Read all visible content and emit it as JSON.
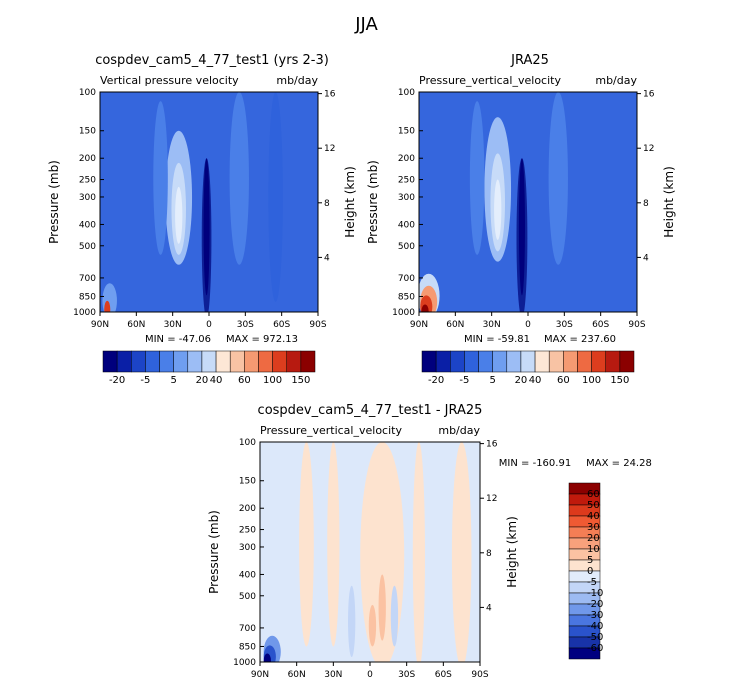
{
  "page_title": "JJA",
  "chart_data": [
    {
      "type": "heatmap",
      "title": "cospdev_cam5_4_77_test1 (yrs 2-3)",
      "subtitle_left": "Vertical pressure velocity",
      "subtitle_right": "mb/day",
      "ylabel": "Pressure (mb)",
      "ylabel_right": "Height (km)",
      "x_ticks": [
        "90N",
        "60N",
        "30N",
        "0",
        "30S",
        "60S",
        "90S"
      ],
      "y_ticks": [
        "100",
        "150",
        "200",
        "250",
        "300",
        "400",
        "500",
        "700",
        "850",
        "1000"
      ],
      "y_ticks_right": [
        "16",
        "12",
        "8",
        "4"
      ],
      "min_text": "MIN = -47.06",
      "max_text": "MAX = 972.13",
      "colorbar_labels": [
        "-20",
        "-5",
        "5",
        "20",
        "40",
        "60",
        "100",
        "150"
      ],
      "colorbar_colors": [
        "#00007d",
        "#0a1fa6",
        "#1c44c7",
        "#2f62dc",
        "#4a7fe8",
        "#6f9ef0",
        "#9cbdf5",
        "#c7dbf8",
        "#fde7d6",
        "#f8c3a4",
        "#f59a72",
        "#ee6a42",
        "#dc3d1e",
        "#b71a10",
        "#8b0000"
      ],
      "background_color": "#3566dd",
      "features": [
        {
          "kind": "core",
          "cx": 2,
          "cy": 600,
          "rx": 4,
          "ry": 400,
          "color": "#0d1f96"
        },
        {
          "kind": "core",
          "cx": 2,
          "cy": 520,
          "rx": 2.5,
          "ry": 320,
          "color": "#00007d"
        },
        {
          "kind": "core",
          "cx": 25,
          "cy": 380,
          "rx": 11,
          "ry": 230,
          "color": "#9cbdf5"
        },
        {
          "kind": "core",
          "cx": 25,
          "cy": 380,
          "rx": 6,
          "ry": 170,
          "color": "#c7dbf8"
        },
        {
          "kind": "core",
          "cx": 25,
          "cy": 380,
          "rx": 3,
          "ry": 110,
          "color": "#e4eefc"
        },
        {
          "kind": "core",
          "cx": 40,
          "cy": 330,
          "rx": 6,
          "ry": 220,
          "color": "#4a7fe8"
        },
        {
          "kind": "core",
          "cx": -25,
          "cy": 350,
          "rx": 8,
          "ry": 260,
          "color": "#4a7fe8"
        },
        {
          "kind": "core",
          "cx": -55,
          "cy": 500,
          "rx": 6,
          "ry": 400,
          "color": "#2f62dc"
        },
        {
          "kind": "core",
          "cx": 82,
          "cy": 900,
          "rx": 6,
          "ry": 160,
          "color": "#6f9ef0"
        },
        {
          "kind": "core",
          "cx": 84,
          "cy": 950,
          "rx": 2.5,
          "ry": 60,
          "color": "#dc3d1e"
        }
      ]
    },
    {
      "type": "heatmap",
      "title": "JRA25",
      "subtitle_left": "Pressure_vertical_velocity",
      "subtitle_right": "mb/day",
      "ylabel": "Pressure (mb)",
      "ylabel_right": "Height (km)",
      "x_ticks": [
        "90N",
        "60N",
        "30N",
        "0",
        "30S",
        "60S",
        "90S"
      ],
      "y_ticks": [
        "100",
        "150",
        "200",
        "250",
        "300",
        "400",
        "500",
        "700",
        "850",
        "1000"
      ],
      "y_ticks_right": [
        "16",
        "12",
        "8",
        "4"
      ],
      "min_text": "MIN = -59.81",
      "max_text": "MAX = 237.60",
      "colorbar_labels": [
        "-20",
        "-5",
        "5",
        "20",
        "40",
        "60",
        "100",
        "150"
      ],
      "colorbar_colors": [
        "#00007d",
        "#0a1fa6",
        "#1c44c7",
        "#2f62dc",
        "#4a7fe8",
        "#6f9ef0",
        "#9cbdf5",
        "#c7dbf8",
        "#fde7d6",
        "#f8c3a4",
        "#f59a72",
        "#ee6a42",
        "#dc3d1e",
        "#b71a10",
        "#8b0000"
      ],
      "background_color": "#3566dd",
      "features": [
        {
          "kind": "core",
          "cx": 5,
          "cy": 600,
          "rx": 4.5,
          "ry": 400,
          "color": "#0d1f96"
        },
        {
          "kind": "core",
          "cx": 5,
          "cy": 520,
          "rx": 2.5,
          "ry": 320,
          "color": "#00007d"
        },
        {
          "kind": "core",
          "cx": 25,
          "cy": 360,
          "rx": 11,
          "ry": 230,
          "color": "#9cbdf5"
        },
        {
          "kind": "core",
          "cx": 25,
          "cy": 360,
          "rx": 6,
          "ry": 170,
          "color": "#c7dbf8"
        },
        {
          "kind": "core",
          "cx": 25,
          "cy": 360,
          "rx": 3,
          "ry": 110,
          "color": "#e4eefc"
        },
        {
          "kind": "core",
          "cx": 42,
          "cy": 330,
          "rx": 6,
          "ry": 220,
          "color": "#4a7fe8"
        },
        {
          "kind": "core",
          "cx": -25,
          "cy": 350,
          "rx": 8,
          "ry": 260,
          "color": "#4a7fe8"
        },
        {
          "kind": "core",
          "cx": 82,
          "cy": 900,
          "rx": 9,
          "ry": 230,
          "color": "#c7dbf8"
        },
        {
          "kind": "core",
          "cx": 82,
          "cy": 930,
          "rx": 7,
          "ry": 170,
          "color": "#f59a72"
        },
        {
          "kind": "core",
          "cx": 84,
          "cy": 960,
          "rx": 5,
          "ry": 120,
          "color": "#dc3d1e"
        },
        {
          "kind": "core",
          "cx": 85,
          "cy": 985,
          "rx": 3,
          "ry": 60,
          "color": "#8b0000"
        }
      ]
    },
    {
      "type": "heatmap",
      "title": "cospdev_cam5_4_77_test1 - JRA25",
      "subtitle_left": "Pressure_vertical_velocity",
      "subtitle_right": "mb/day",
      "ylabel": "Pressure (mb)",
      "ylabel_right": "Height (km)",
      "x_ticks": [
        "90N",
        "60N",
        "30N",
        "0",
        "30S",
        "60S",
        "90S"
      ],
      "y_ticks": [
        "100",
        "150",
        "200",
        "250",
        "300",
        "400",
        "500",
        "700",
        "850",
        "1000"
      ],
      "y_ticks_right": [
        "16",
        "12",
        "8",
        "4"
      ],
      "min_text": "MIN = -160.91",
      "max_text": "MAX =  24.28",
      "colorbar_labels": [
        "60",
        "50",
        "40",
        "30",
        "20",
        "10",
        "5",
        "0",
        "-5",
        "-10",
        "-20",
        "-30",
        "-40",
        "-50",
        "-60"
      ],
      "colorbar_colors": [
        "#8b0000",
        "#c01a0c",
        "#dd3a1c",
        "#ef5a33",
        "#f47e55",
        "#f8a17c",
        "#fbc2a2",
        "#fde3cf",
        "#e2ecfb",
        "#c3d6f7",
        "#9dbbf2",
        "#7098ea",
        "#4a76e0",
        "#2a53cc",
        "#1833a8",
        "#000080"
      ],
      "background_color": "#dce8fa",
      "features": [
        {
          "kind": "band",
          "cx": -75,
          "cy": 550,
          "rx": 8,
          "ry": 500,
          "color": "#fde3cf"
        },
        {
          "kind": "band",
          "cx": -40,
          "cy": 500,
          "rx": 5,
          "ry": 500,
          "color": "#fde3cf"
        },
        {
          "kind": "band",
          "cx": -10,
          "cy": 500,
          "rx": 18,
          "ry": 500,
          "color": "#fde3cf"
        },
        {
          "kind": "band",
          "cx": 30,
          "cy": 450,
          "rx": 5,
          "ry": 400,
          "color": "#fde3cf"
        },
        {
          "kind": "band",
          "cx": 52,
          "cy": 450,
          "rx": 6,
          "ry": 400,
          "color": "#fde3cf"
        },
        {
          "kind": "core",
          "cx": -10,
          "cy": 600,
          "rx": 3,
          "ry": 200,
          "color": "#fbc2a2"
        },
        {
          "kind": "core",
          "cx": -2,
          "cy": 700,
          "rx": 3,
          "ry": 150,
          "color": "#fbc2a2"
        },
        {
          "kind": "core",
          "cx": -20,
          "cy": 650,
          "rx": 3,
          "ry": 200,
          "color": "#c3d6f7"
        },
        {
          "kind": "core",
          "cx": 15,
          "cy": 700,
          "rx": 3,
          "ry": 250,
          "color": "#c3d6f7"
        },
        {
          "kind": "core",
          "cx": 80,
          "cy": 920,
          "rx": 7,
          "ry": 160,
          "color": "#7098ea"
        },
        {
          "kind": "core",
          "cx": 82,
          "cy": 950,
          "rx": 5,
          "ry": 110,
          "color": "#2a53cc"
        },
        {
          "kind": "core",
          "cx": 84,
          "cy": 975,
          "rx": 3,
          "ry": 60,
          "color": "#000080"
        }
      ]
    }
  ]
}
